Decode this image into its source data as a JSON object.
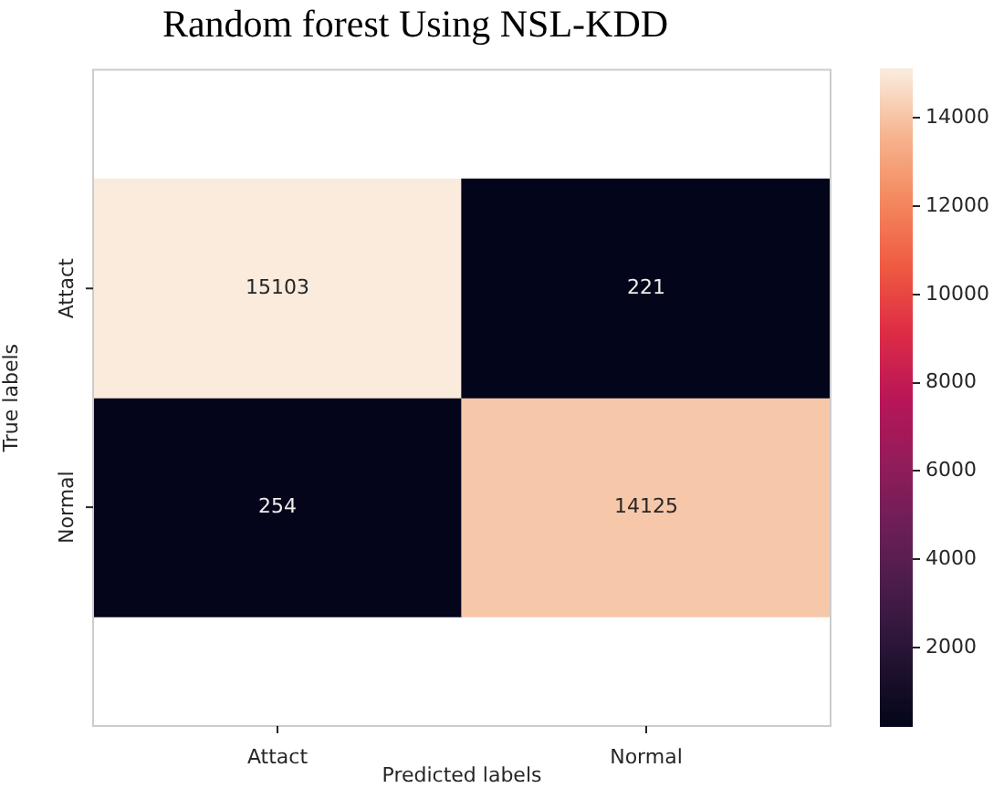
{
  "chart_data": {
    "type": "heatmap",
    "title": "Random forest Using NSL-KDD",
    "xlabel": "Predicted labels",
    "ylabel": "True labels",
    "categories": [
      "Attact",
      "Normal"
    ],
    "y_categories": [
      "Attact",
      "Normal"
    ],
    "cells": [
      [
        15103,
        221
      ],
      [
        254,
        14125
      ]
    ],
    "clim": [
      221,
      15103
    ],
    "cticks": [
      2000,
      4000,
      6000,
      8000,
      10000,
      12000,
      14000
    ],
    "data_labels": true
  }
}
